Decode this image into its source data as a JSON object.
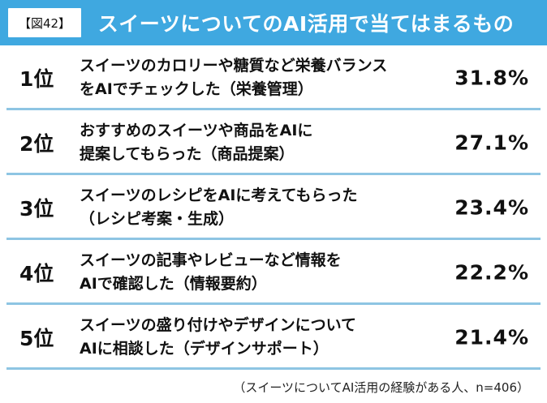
{
  "header": {
    "figure_label": "【図42】",
    "title": "スイーツについてのAI活用で当てはまるもの"
  },
  "chart_data": {
    "type": "table",
    "title": "スイーツについてのAI活用で当てはまるもの",
    "rows": [
      {
        "rank": "1位",
        "label_lines": [
          "スイーツのカロリーや糖質など栄養バランス",
          "をAIでチェックした（栄養管理）"
        ],
        "value": 31.8,
        "value_label": "31.8%"
      },
      {
        "rank": "2位",
        "label_lines": [
          "おすすめのスイーツや商品をAIに",
          "提案してもらった（商品提案）"
        ],
        "value": 27.1,
        "value_label": "27.1%"
      },
      {
        "rank": "3位",
        "label_lines": [
          "スイーツのレシピをAIに考えてもらった",
          "（レシピ考案・生成）"
        ],
        "value": 23.4,
        "value_label": "23.4%"
      },
      {
        "rank": "4位",
        "label_lines": [
          "スイーツの記事やレビューなど情報を",
          "AIで確認した（情報要約）"
        ],
        "value": 22.2,
        "value_label": "22.2%"
      },
      {
        "rank": "5位",
        "label_lines": [
          "スイーツの盛り付けやデザインについて",
          "AIに相談した（デザインサポート）"
        ],
        "value": 21.4,
        "value_label": "21.4%"
      }
    ],
    "note": "（スイーツについてAI活用の経験がある人、n=406）"
  },
  "colors": {
    "header_bg": "#3fa8e0",
    "divider": "#8ec5e3"
  }
}
